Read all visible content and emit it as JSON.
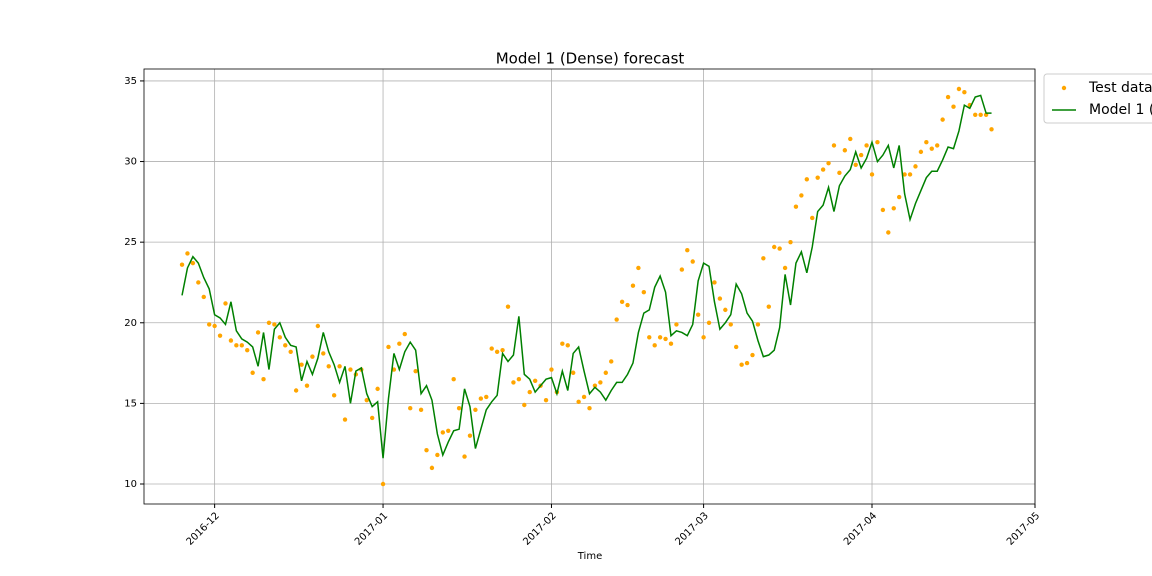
{
  "chart_data": {
    "type": "line",
    "title": "Model 1 (Dense) forecast",
    "x_label": "Time",
    "x": [
      "2016-11-25",
      "2016-11-26",
      "2016-11-27",
      "2016-11-28",
      "2016-11-29",
      "2016-11-30",
      "2016-12-01",
      "2016-12-02",
      "2016-12-03",
      "2016-12-04",
      "2016-12-05",
      "2016-12-06",
      "2016-12-07",
      "2016-12-08",
      "2016-12-09",
      "2016-12-10",
      "2016-12-11",
      "2016-12-12",
      "2016-12-13",
      "2016-12-14",
      "2016-12-15",
      "2016-12-16",
      "2016-12-17",
      "2016-12-18",
      "2016-12-19",
      "2016-12-20",
      "2016-12-21",
      "2016-12-22",
      "2016-12-23",
      "2016-12-24",
      "2016-12-25",
      "2016-12-26",
      "2016-12-27",
      "2016-12-28",
      "2016-12-29",
      "2016-12-30",
      "2016-12-31",
      "2017-01-01",
      "2017-01-02",
      "2017-01-03",
      "2017-01-04",
      "2017-01-05",
      "2017-01-06",
      "2017-01-07",
      "2017-01-08",
      "2017-01-09",
      "2017-01-10",
      "2017-01-11",
      "2017-01-12",
      "2017-01-13",
      "2017-01-14",
      "2017-01-15",
      "2017-01-16",
      "2017-01-17",
      "2017-01-18",
      "2017-01-19",
      "2017-01-20",
      "2017-01-21",
      "2017-01-22",
      "2017-01-23",
      "2017-01-24",
      "2017-01-25",
      "2017-01-26",
      "2017-01-27",
      "2017-01-28",
      "2017-01-29",
      "2017-01-30",
      "2017-01-31",
      "2017-02-01",
      "2017-02-02",
      "2017-02-03",
      "2017-02-04",
      "2017-02-05",
      "2017-02-06",
      "2017-02-07",
      "2017-02-08",
      "2017-02-09",
      "2017-02-10",
      "2017-02-11",
      "2017-02-12",
      "2017-02-13",
      "2017-02-14",
      "2017-02-15",
      "2017-02-16",
      "2017-02-17",
      "2017-02-18",
      "2017-02-19",
      "2017-02-20",
      "2017-02-21",
      "2017-02-22",
      "2017-02-23",
      "2017-02-24",
      "2017-02-25",
      "2017-02-26",
      "2017-02-27",
      "2017-02-28",
      "2017-03-01",
      "2017-03-02",
      "2017-03-03",
      "2017-03-04",
      "2017-03-05",
      "2017-03-06",
      "2017-03-07",
      "2017-03-08",
      "2017-03-09",
      "2017-03-10",
      "2017-03-11",
      "2017-03-12",
      "2017-03-13",
      "2017-03-14",
      "2017-03-15",
      "2017-03-16",
      "2017-03-17",
      "2017-03-18",
      "2017-03-19",
      "2017-03-20",
      "2017-03-21",
      "2017-03-22",
      "2017-03-23",
      "2017-03-24",
      "2017-03-25",
      "2017-03-26",
      "2017-03-27",
      "2017-03-28",
      "2017-03-29",
      "2017-03-30",
      "2017-03-31",
      "2017-04-01",
      "2017-04-02",
      "2017-04-03",
      "2017-04-04",
      "2017-04-05",
      "2017-04-06",
      "2017-04-07",
      "2017-04-08",
      "2017-04-09",
      "2017-04-10",
      "2017-04-11",
      "2017-04-12",
      "2017-04-13",
      "2017-04-14",
      "2017-04-15",
      "2017-04-16",
      "2017-04-17",
      "2017-04-18",
      "2017-04-19",
      "2017-04-20",
      "2017-04-21",
      "2017-04-22",
      "2017-04-23"
    ],
    "series": [
      {
        "name": "Test data",
        "style": "points",
        "color": "#ffa500",
        "values": [
          23.6,
          24.3,
          23.7,
          22.5,
          21.6,
          19.9,
          19.8,
          19.2,
          21.2,
          18.9,
          18.6,
          18.6,
          18.3,
          16.9,
          19.4,
          16.5,
          20.0,
          19.9,
          19.1,
          18.6,
          18.2,
          15.8,
          17.4,
          16.1,
          17.9,
          19.8,
          18.1,
          17.3,
          15.5,
          17.3,
          14.0,
          17.1,
          16.8,
          17.1,
          15.2,
          14.1,
          15.9,
          10.0,
          18.5,
          17.1,
          18.7,
          19.3,
          14.7,
          17.0,
          14.6,
          12.1,
          11.0,
          11.8,
          13.2,
          13.3,
          16.5,
          14.7,
          11.7,
          13.0,
          14.6,
          15.3,
          15.4,
          18.4,
          18.2,
          18.3,
          21.0,
          16.3,
          16.5,
          14.9,
          15.7,
          16.4,
          16.1,
          15.2,
          17.1,
          15.7,
          18.7,
          18.6,
          16.9,
          15.1,
          15.4,
          14.7,
          16.1,
          16.3,
          16.9,
          17.6,
          20.2,
          21.3,
          21.1,
          22.3,
          23.4,
          21.9,
          19.1,
          18.6,
          19.1,
          19.0,
          18.7,
          19.9,
          23.3,
          24.5,
          23.8,
          20.5,
          19.1,
          20.0,
          22.5,
          21.5,
          20.8,
          19.9,
          18.5,
          17.4,
          17.5,
          18.0,
          19.9,
          24.0,
          21.0,
          24.7,
          24.6,
          23.4,
          25.0,
          27.2,
          27.9,
          28.9,
          26.5,
          29.0,
          29.5,
          29.9,
          31.0,
          29.3,
          30.7,
          31.4,
          29.8,
          30.4,
          31.0,
          29.2,
          31.2,
          27.0,
          25.6,
          27.1,
          27.8,
          29.2,
          29.2,
          29.7,
          30.6,
          31.2,
          30.8,
          31.0,
          32.6,
          34.0,
          33.4,
          34.5,
          34.3,
          33.5,
          32.9,
          32.9,
          32.9,
          32.0
        ]
      },
      {
        "name": "Model 1 (",
        "style": "line",
        "color": "#008000",
        "values": [
          21.7,
          23.4,
          24.1,
          23.7,
          22.8,
          22.1,
          20.5,
          20.3,
          19.9,
          21.3,
          19.5,
          19.0,
          18.8,
          18.5,
          17.3,
          19.4,
          17.1,
          19.6,
          20.0,
          19.1,
          18.6,
          18.5,
          16.4,
          17.6,
          16.8,
          17.8,
          19.4,
          18.2,
          17.4,
          16.3,
          17.3,
          15.0,
          17.0,
          17.2,
          15.6,
          14.8,
          15.1,
          11.6,
          15.3,
          18.1,
          17.1,
          18.2,
          18.8,
          18.3,
          15.6,
          16.1,
          15.2,
          13.1,
          11.8,
          12.6,
          13.3,
          13.4,
          15.9,
          14.8,
          12.2,
          13.4,
          14.6,
          15.1,
          15.5,
          18.1,
          17.6,
          18.0,
          20.4,
          16.8,
          16.5,
          15.7,
          16.1,
          16.5,
          16.6,
          15.6,
          17.0,
          15.8,
          18.1,
          18.5,
          17.0,
          15.6,
          16.0,
          15.7,
          15.2,
          15.8,
          16.3,
          16.3,
          16.8,
          17.5,
          19.4,
          20.6,
          20.8,
          22.2,
          22.9,
          21.9,
          19.2,
          19.5,
          19.4,
          19.2,
          19.9,
          22.6,
          23.7,
          23.5,
          21.3,
          19.6,
          20.0,
          20.5,
          22.4,
          21.8,
          20.6,
          20.1,
          18.9,
          17.9,
          18.0,
          18.3,
          19.7,
          23.0,
          21.1,
          23.7,
          24.4,
          23.1,
          24.7,
          26.9,
          27.3,
          28.4,
          26.9,
          28.5,
          29.1,
          29.5,
          30.6,
          29.6,
          30.2,
          31.2,
          30.0,
          30.4,
          31.0,
          29.6,
          31.0,
          28.0,
          26.4,
          27.4,
          28.2,
          29.0,
          29.4,
          29.4,
          30.1,
          30.9,
          30.8,
          31.9,
          33.5,
          33.3,
          34.0,
          34.1,
          33.0,
          33.0
        ]
      }
    ],
    "xlim": [
      "2016-11-18",
      "2017-05-01"
    ],
    "xticks": [
      {
        "value": "2016-12-01",
        "label": "2016-12"
      },
      {
        "value": "2017-01-01",
        "label": "2017-01"
      },
      {
        "value": "2017-02-01",
        "label": "2017-02"
      },
      {
        "value": "2017-03-01",
        "label": "2017-03"
      },
      {
        "value": "2017-04-01",
        "label": "2017-04"
      },
      {
        "value": "2017-05-01",
        "label": "2017-05"
      }
    ],
    "ylim": [
      8.76,
      35.74
    ],
    "yticks": [
      10,
      15,
      20,
      25,
      30,
      35
    ],
    "grid": true,
    "legend": "outside upper right"
  }
}
